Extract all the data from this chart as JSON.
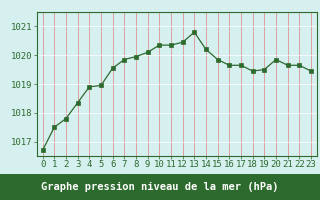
{
  "x": [
    0,
    1,
    2,
    3,
    4,
    5,
    6,
    7,
    8,
    9,
    10,
    11,
    12,
    13,
    14,
    15,
    16,
    17,
    18,
    19,
    20,
    21,
    22,
    23
  ],
  "y": [
    1016.7,
    1017.5,
    1017.8,
    1018.35,
    1018.9,
    1018.95,
    1019.55,
    1019.85,
    1019.95,
    1020.1,
    1020.35,
    1020.35,
    1020.45,
    1020.8,
    1020.2,
    1019.85,
    1019.65,
    1019.65,
    1019.45,
    1019.5,
    1019.85,
    1019.65,
    1019.65,
    1019.45
  ],
  "ylim": [
    1016.5,
    1021.5
  ],
  "yticks": [
    1017,
    1018,
    1019,
    1020,
    1021
  ],
  "xticks": [
    0,
    1,
    2,
    3,
    4,
    5,
    6,
    7,
    8,
    9,
    10,
    11,
    12,
    13,
    14,
    15,
    16,
    17,
    18,
    19,
    20,
    21,
    22,
    23
  ],
  "line_color": "#2d6a2d",
  "marker_color": "#2d6a2d",
  "bg_color": "#d6f0f0",
  "grid_color": "#c8e8e8",
  "border_color": "#2d6a2d",
  "xlabel": "Graphe pression niveau de la mer (hPa)",
  "xlabel_color": "#ffffff",
  "xlabel_bg": "#2d6a2d",
  "tick_fontsize": 6.5,
  "label_fontsize": 7.5
}
